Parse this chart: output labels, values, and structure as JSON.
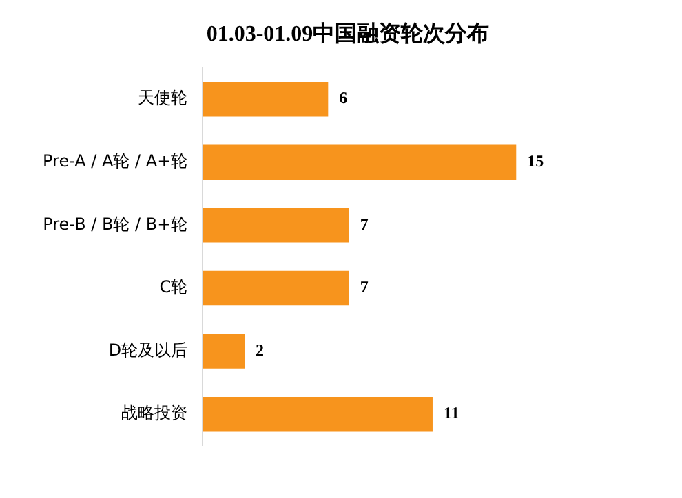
{
  "chart_data": {
    "type": "bar",
    "orientation": "horizontal",
    "title": "01.03-01.09中国融资轮次分布",
    "categories": [
      "天使轮",
      "Pre-A / A轮 / A+轮",
      "Pre-B / B轮 / B+轮",
      "C轮",
      "D轮及以后",
      "战略投资"
    ],
    "values": [
      6,
      15,
      7,
      7,
      2,
      11
    ],
    "color": "#f7941d",
    "data_labels": true,
    "tick_labels": "y"
  }
}
